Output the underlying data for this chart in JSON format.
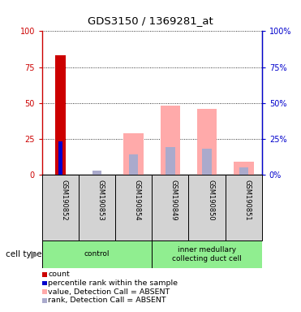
{
  "title": "GDS3150 / 1369281_at",
  "samples": [
    "GSM190852",
    "GSM190853",
    "GSM190854",
    "GSM190849",
    "GSM190850",
    "GSM190851"
  ],
  "count": [
    83,
    0,
    0,
    0,
    0,
    0
  ],
  "percentile_rank": [
    23,
    0,
    0,
    0,
    0,
    0
  ],
  "value_absent": [
    0,
    0,
    29,
    48,
    46,
    9
  ],
  "rank_absent": [
    0,
    3,
    14,
    19,
    18,
    5
  ],
  "red_bar_color": "#cc0000",
  "blue_bar_color": "#0000cc",
  "pink_bar_color": "#ffaaaa",
  "lavender_bar_color": "#aaaacc",
  "left_axis_color": "#cc0000",
  "right_axis_color": "#0000cc",
  "ylim": [
    0,
    100
  ],
  "yticks": [
    0,
    25,
    50,
    75,
    100
  ],
  "plot_bg_color": "#ffffff",
  "sample_box_bg": "#d3d3d3",
  "cell_type_bg": "#90ee90",
  "cell_types": [
    {
      "label": "control",
      "start": 0,
      "end": 3
    },
    {
      "label": "inner medullary\ncollecting duct cell",
      "start": 3,
      "end": 6
    }
  ],
  "legend_items": [
    {
      "color": "#cc0000",
      "label": "count"
    },
    {
      "color": "#0000cc",
      "label": "percentile rank within the sample"
    },
    {
      "color": "#ffaaaa",
      "label": "value, Detection Call = ABSENT"
    },
    {
      "color": "#aaaacc",
      "label": "rank, Detection Call = ABSENT"
    }
  ]
}
